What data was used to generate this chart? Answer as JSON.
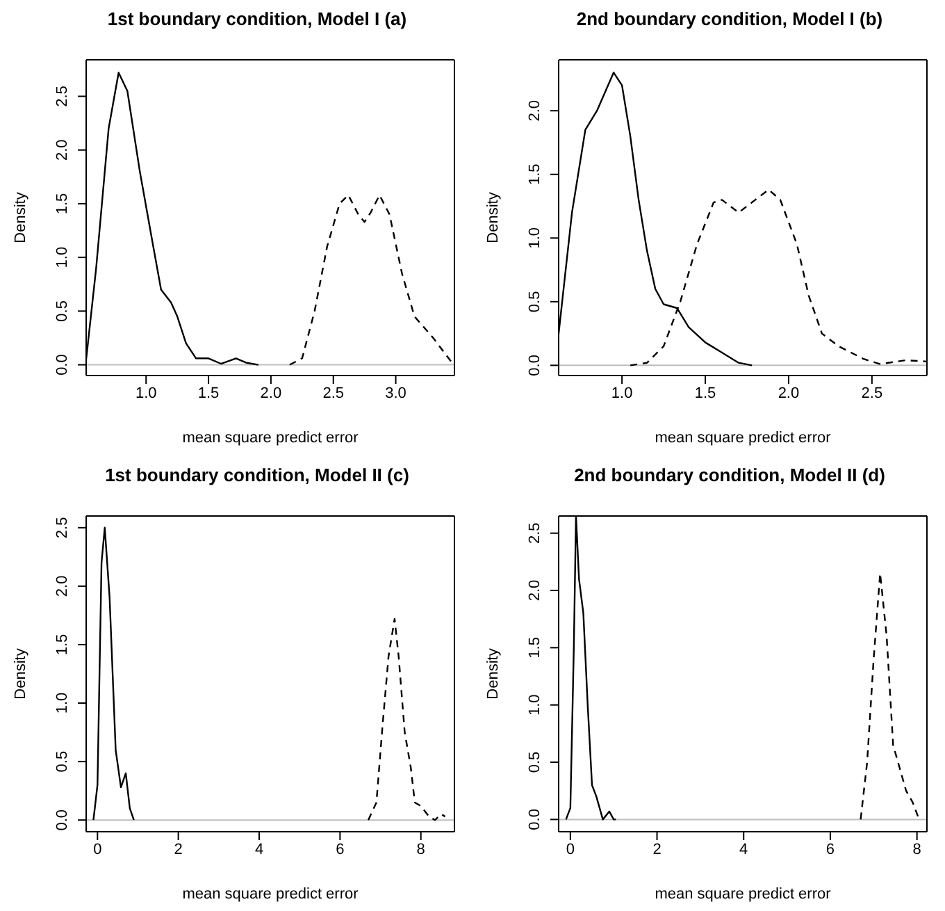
{
  "chart_data": [
    {
      "type": "line",
      "title": "1st boundary condition, Model I (a)",
      "xlabel": "mean square predict error",
      "ylabel": "Density",
      "xlim": [
        0.52,
        3.47
      ],
      "ylim": [
        -0.1,
        2.84
      ],
      "xticks": [
        {
          "value": 1,
          "label": "1.0"
        },
        {
          "value": 1.5,
          "label": "1.5"
        },
        {
          "value": 2,
          "label": "2.0"
        },
        {
          "value": 2.5,
          "label": "2.5"
        },
        {
          "value": 3,
          "label": "3.0"
        }
      ],
      "yticks": [
        {
          "value": 0,
          "label": "0.0"
        },
        {
          "value": 0.5,
          "label": "0.5"
        },
        {
          "value": 1,
          "label": "1.0"
        },
        {
          "value": 1.5,
          "label": "1.5"
        },
        {
          "value": 2,
          "label": "2.0"
        },
        {
          "value": 2.5,
          "label": "2.5"
        }
      ],
      "ref_lines": [
        {
          "axis": "y",
          "value": 0,
          "color": "#bebebe"
        }
      ],
      "series": [
        {
          "color": "#000000",
          "line_style": "solid",
          "x": [
            0.52,
            0.6,
            0.7,
            0.78,
            0.85,
            0.95,
            1.05,
            1.12,
            1.2,
            1.25,
            1.32,
            1.4,
            1.5,
            1.6,
            1.72,
            1.8,
            1.9
          ],
          "values": [
            0.05,
            0.9,
            2.2,
            2.72,
            2.55,
            1.8,
            1.15,
            0.7,
            0.58,
            0.45,
            0.2,
            0.06,
            0.06,
            0.01,
            0.06,
            0.02,
            0
          ]
        },
        {
          "color": "#000000",
          "line_style": "dashed",
          "x": [
            2.15,
            2.25,
            2.35,
            2.45,
            2.55,
            2.62,
            2.7,
            2.75,
            2.8,
            2.87,
            2.95,
            3.05,
            3.15,
            3.3,
            3.45
          ],
          "values": [
            0,
            0.06,
            0.5,
            1.1,
            1.5,
            1.58,
            1.4,
            1.33,
            1.42,
            1.58,
            1.4,
            0.85,
            0.45,
            0.25,
            0.02
          ]
        }
      ]
    },
    {
      "type": "line",
      "title": "2nd boundary condition, Model I (b)",
      "xlabel": "mean square predict error",
      "ylabel": "Density",
      "xlim": [
        0.62,
        2.83
      ],
      "ylim": [
        -0.08,
        2.4
      ],
      "xticks": [
        {
          "value": 1,
          "label": "1.0"
        },
        {
          "value": 1.5,
          "label": "1.5"
        },
        {
          "value": 2,
          "label": "2.0"
        },
        {
          "value": 2.5,
          "label": "2.5"
        }
      ],
      "yticks": [
        {
          "value": 0,
          "label": "0.0"
        },
        {
          "value": 0.5,
          "label": "0.5"
        },
        {
          "value": 1,
          "label": "1.0"
        },
        {
          "value": 1.5,
          "label": "1.5"
        },
        {
          "value": 2,
          "label": "2.0"
        }
      ],
      "ref_lines": [
        {
          "axis": "y",
          "value": 0,
          "color": "#bebebe"
        }
      ],
      "series": [
        {
          "color": "#000000",
          "line_style": "solid",
          "x": [
            0.62,
            0.7,
            0.78,
            0.85,
            0.9,
            0.95,
            1.0,
            1.05,
            1.1,
            1.15,
            1.2,
            1.25,
            1.33,
            1.4,
            1.5,
            1.6,
            1.7,
            1.78
          ],
          "values": [
            0.25,
            1.2,
            1.85,
            2.0,
            2.15,
            2.3,
            2.2,
            1.8,
            1.3,
            0.9,
            0.6,
            0.48,
            0.45,
            0.3,
            0.18,
            0.1,
            0.02,
            0
          ]
        },
        {
          "color": "#000000",
          "line_style": "dashed",
          "x": [
            1.05,
            1.15,
            1.25,
            1.35,
            1.45,
            1.55,
            1.6,
            1.7,
            1.8,
            1.88,
            1.95,
            2.05,
            2.12,
            2.2,
            2.3,
            2.45,
            2.55,
            2.7,
            2.83
          ],
          "values": [
            0,
            0.02,
            0.15,
            0.5,
            0.95,
            1.28,
            1.3,
            1.2,
            1.3,
            1.38,
            1.3,
            0.95,
            0.55,
            0.25,
            0.15,
            0.05,
            0.01,
            0.04,
            0.03
          ]
        }
      ]
    },
    {
      "type": "line",
      "title": "1st boundary condition, Model II (c)",
      "xlabel": "mean square predict error",
      "ylabel": "Density",
      "xlim": [
        -0.28,
        8.83
      ],
      "ylim": [
        -0.1,
        2.6
      ],
      "xticks": [
        0,
        2,
        4,
        6,
        8
      ],
      "yticks": [
        {
          "value": 0,
          "label": "0.0"
        },
        {
          "value": 0.5,
          "label": "0.5"
        },
        {
          "value": 1,
          "label": "1.0"
        },
        {
          "value": 1.5,
          "label": "1.5"
        },
        {
          "value": 2,
          "label": "2.0"
        },
        {
          "value": 2.5,
          "label": "2.5"
        }
      ],
      "ref_lines": [
        {
          "axis": "y",
          "value": 0,
          "color": "#bebebe"
        }
      ],
      "series": [
        {
          "color": "#000000",
          "line_style": "solid",
          "x": [
            -0.1,
            0,
            0.1,
            0.18,
            0.3,
            0.45,
            0.58,
            0.7,
            0.8,
            0.9
          ],
          "values": [
            0,
            0.3,
            2.2,
            2.5,
            1.9,
            0.6,
            0.28,
            0.4,
            0.1,
            0
          ]
        },
        {
          "color": "#000000",
          "line_style": "dashed",
          "x": [
            6.7,
            6.9,
            7.05,
            7.2,
            7.35,
            7.45,
            7.6,
            7.75,
            7.85,
            8.0,
            8.2,
            8.35,
            8.5,
            8.6
          ],
          "values": [
            0,
            0.15,
            0.8,
            1.4,
            1.72,
            1.4,
            0.75,
            0.45,
            0.15,
            0.12,
            0.03,
            0,
            0.05,
            0.03
          ]
        }
      ]
    },
    {
      "type": "line",
      "title": "2nd boundary condition, Model II (d)",
      "xlabel": "mean square predict error",
      "ylabel": "Density",
      "xlim": [
        -0.27,
        8.23
      ],
      "ylim": [
        -0.107,
        2.65
      ],
      "xticks": [
        0,
        2,
        4,
        6,
        8
      ],
      "yticks": [
        {
          "value": 0,
          "label": "0.0"
        },
        {
          "value": 0.5,
          "label": "0.5"
        },
        {
          "value": 1,
          "label": "1.0"
        },
        {
          "value": 1.5,
          "label": "1.5"
        },
        {
          "value": 2,
          "label": "2.0"
        },
        {
          "value": 2.5,
          "label": "2.5"
        }
      ],
      "ref_lines": [
        {
          "axis": "y",
          "value": 0,
          "color": "#bebebe"
        }
      ],
      "series": [
        {
          "color": "#000000",
          "line_style": "solid",
          "x": [
            -0.1,
            0,
            0.08,
            0.13,
            0.2,
            0.3,
            0.4,
            0.5,
            0.6,
            0.75,
            0.9,
            1.0,
            1.05
          ],
          "values": [
            0,
            0.1,
            1.5,
            2.65,
            2.1,
            1.8,
            1.0,
            0.3,
            0.2,
            0,
            0.07,
            0,
            0
          ]
        },
        {
          "color": "#000000",
          "line_style": "dashed",
          "x": [
            6.7,
            6.85,
            7.0,
            7.15,
            7.3,
            7.45,
            7.6,
            7.75,
            7.9,
            8.05
          ],
          "values": [
            0,
            0.5,
            1.4,
            2.15,
            1.6,
            0.65,
            0.45,
            0.25,
            0.15,
            0
          ]
        }
      ]
    }
  ]
}
